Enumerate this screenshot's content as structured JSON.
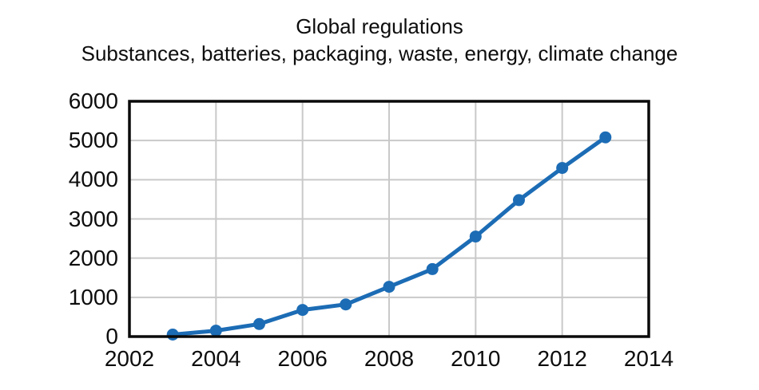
{
  "title": {
    "line1": "Global regulations",
    "line2": "Substances, batteries, packaging, waste, energy, climate change"
  },
  "colors": {
    "line": "#1c6cb5",
    "marker": "#1c6cb5",
    "grid": "#c9c9c9",
    "frame": "#0a0a0a",
    "background": "#ffffff",
    "text": "#0d0d0d"
  },
  "chart_data": {
    "type": "line",
    "title": "Global regulations",
    "subtitle": "Substances, batteries, packaging, waste, energy, climate change",
    "x": [
      2003,
      2004,
      2005,
      2006,
      2007,
      2008,
      2009,
      2010,
      2011,
      2012,
      2013
    ],
    "values": [
      50,
      150,
      320,
      680,
      820,
      1270,
      1720,
      2550,
      3480,
      4300,
      5080
    ],
    "xlim": [
      2002,
      2014
    ],
    "ylim": [
      0,
      6000
    ],
    "x_ticks": [
      2002,
      2004,
      2006,
      2008,
      2010,
      2012,
      2014
    ],
    "y_ticks": [
      0,
      1000,
      2000,
      3000,
      4000,
      5000,
      6000
    ],
    "grid": true,
    "legend_position": "none",
    "marker": "circle",
    "xlabel": "",
    "ylabel": ""
  }
}
